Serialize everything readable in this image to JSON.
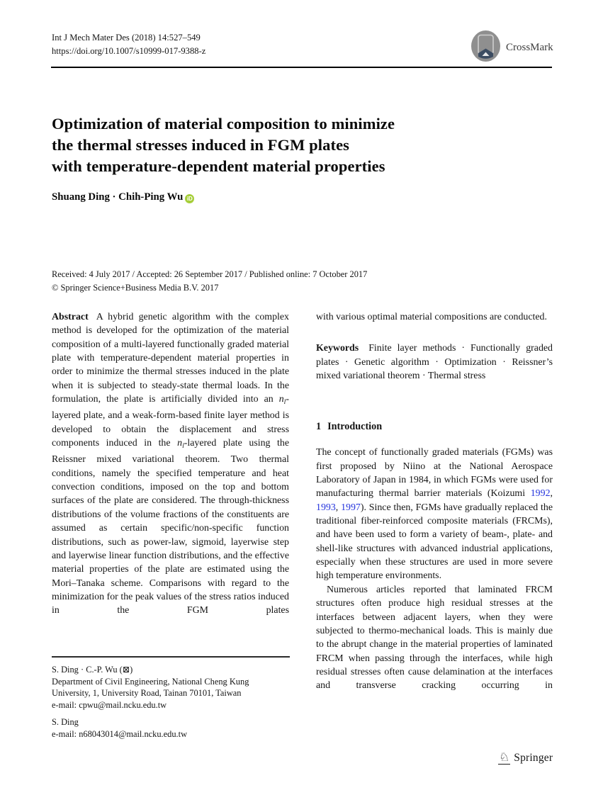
{
  "colors": {
    "link": "#2433dd",
    "orcid_green": "#A6CE39",
    "rule_black": "#000000"
  },
  "header": {
    "journal_ref": "Int J Mech Mater Des (2018) 14:527–549",
    "doi": "https://doi.org/10.1007/s10999-017-9388-z",
    "crossmark_label": "CrossMark"
  },
  "title": "Optimization of material composition to minimize\nthe thermal stresses induced in FGM plates\nwith temperature-dependent material properties",
  "authors": {
    "names": "Shuang Ding · Chih-Ping Wu",
    "orcid_label": "iD"
  },
  "history": {
    "dates": "Received: 4 July 2017 / Accepted: 26 September 2017 / Published online: 7 October 2017",
    "copyright": "© Springer Science+Business Media B.V. 2017"
  },
  "abstract": {
    "heading": "Abstract",
    "col1_rich": [
      {
        "t": "A hybrid genetic algorithm with the complex method is developed for the optimization of the material composition of a multi-layered functionally graded material plate with temperature-dependent material properties in order to minimize the thermal stresses induced in the plate when it is subjected to steady-state thermal loads. In the formulation, the plate is artificially divided into an "
      },
      {
        "t": "n",
        "s": "i"
      },
      {
        "t": "l",
        "s": "sub"
      },
      {
        "t": "-layered plate, and a weak-form-based finite layer method is developed to obtain the displacement and stress components induced in the "
      },
      {
        "t": "n",
        "s": "i"
      },
      {
        "t": "l",
        "s": "sub"
      },
      {
        "t": "-layered plate using the Reissner mixed variational theorem. Two thermal conditions, namely the specified temperature and heat convection conditions, imposed on the top and bottom surfaces of the plate are considered. The through-thickness distributions of the volume fractions of the constituents are assumed as certain specific/non-specific function distributions, such as power-law, sigmoid, layerwise step and layerwise linear function distributions, and the effective material properties of the plate are estimated using the Mori–Tanaka scheme. Comparisons with regard to the minimization for the peak values of the stress ratios induced in the FGM plates"
      }
    ],
    "col2_text": "with various optimal material compositions are conducted."
  },
  "keywords": {
    "heading": "Keywords",
    "text": "Finite layer methods · Functionally graded plates · Genetic algorithm · Optimization · Reissner’s mixed variational theorem · Thermal stress"
  },
  "introduction": {
    "number": "1",
    "heading": "Introduction",
    "para1_rich": [
      {
        "t": "The concept of functionally graded materials (FGMs) was first proposed by Niino at the National Aerospace Laboratory of Japan in 1984, in which FGMs were used for manufacturing thermal barrier materials (Koizumi "
      },
      {
        "t": "1992",
        "s": "link"
      },
      {
        "t": ", "
      },
      {
        "t": "1993",
        "s": "link"
      },
      {
        "t": ", "
      },
      {
        "t": "1997",
        "s": "link"
      },
      {
        "t": "). Since then, FGMs have gradually replaced the traditional fiber-reinforced composite materials (FRCMs), and have been used to form a variety of beam-, plate- and shell-like structures with advanced industrial applications, especially when these structures are used in more severe high temperature environments."
      }
    ],
    "para2": "Numerous articles reported that laminated FRCM structures often produce high residual stresses at the interfaces between adjacent layers, when they were subjected to thermo-mechanical loads. This is mainly due to the abrupt change in the material properties of laminated FRCM when passing through the interfaces, while high residual stresses often cause delamination at the interfaces and transverse cracking occurring in"
  },
  "footnote": {
    "correspondence": "S. Ding · C.-P. Wu (⊠)",
    "affiliation": "Department of Civil Engineering, National Cheng Kung University, 1, University Road, Tainan 70101, Taiwan",
    "email1": "e-mail: cpwu@mail.ncku.edu.tw",
    "author2": "S. Ding",
    "email2": "e-mail: n68043014@mail.ncku.edu.tw"
  },
  "footer": {
    "knight_glyph": "♘",
    "publisher": "Springer"
  }
}
